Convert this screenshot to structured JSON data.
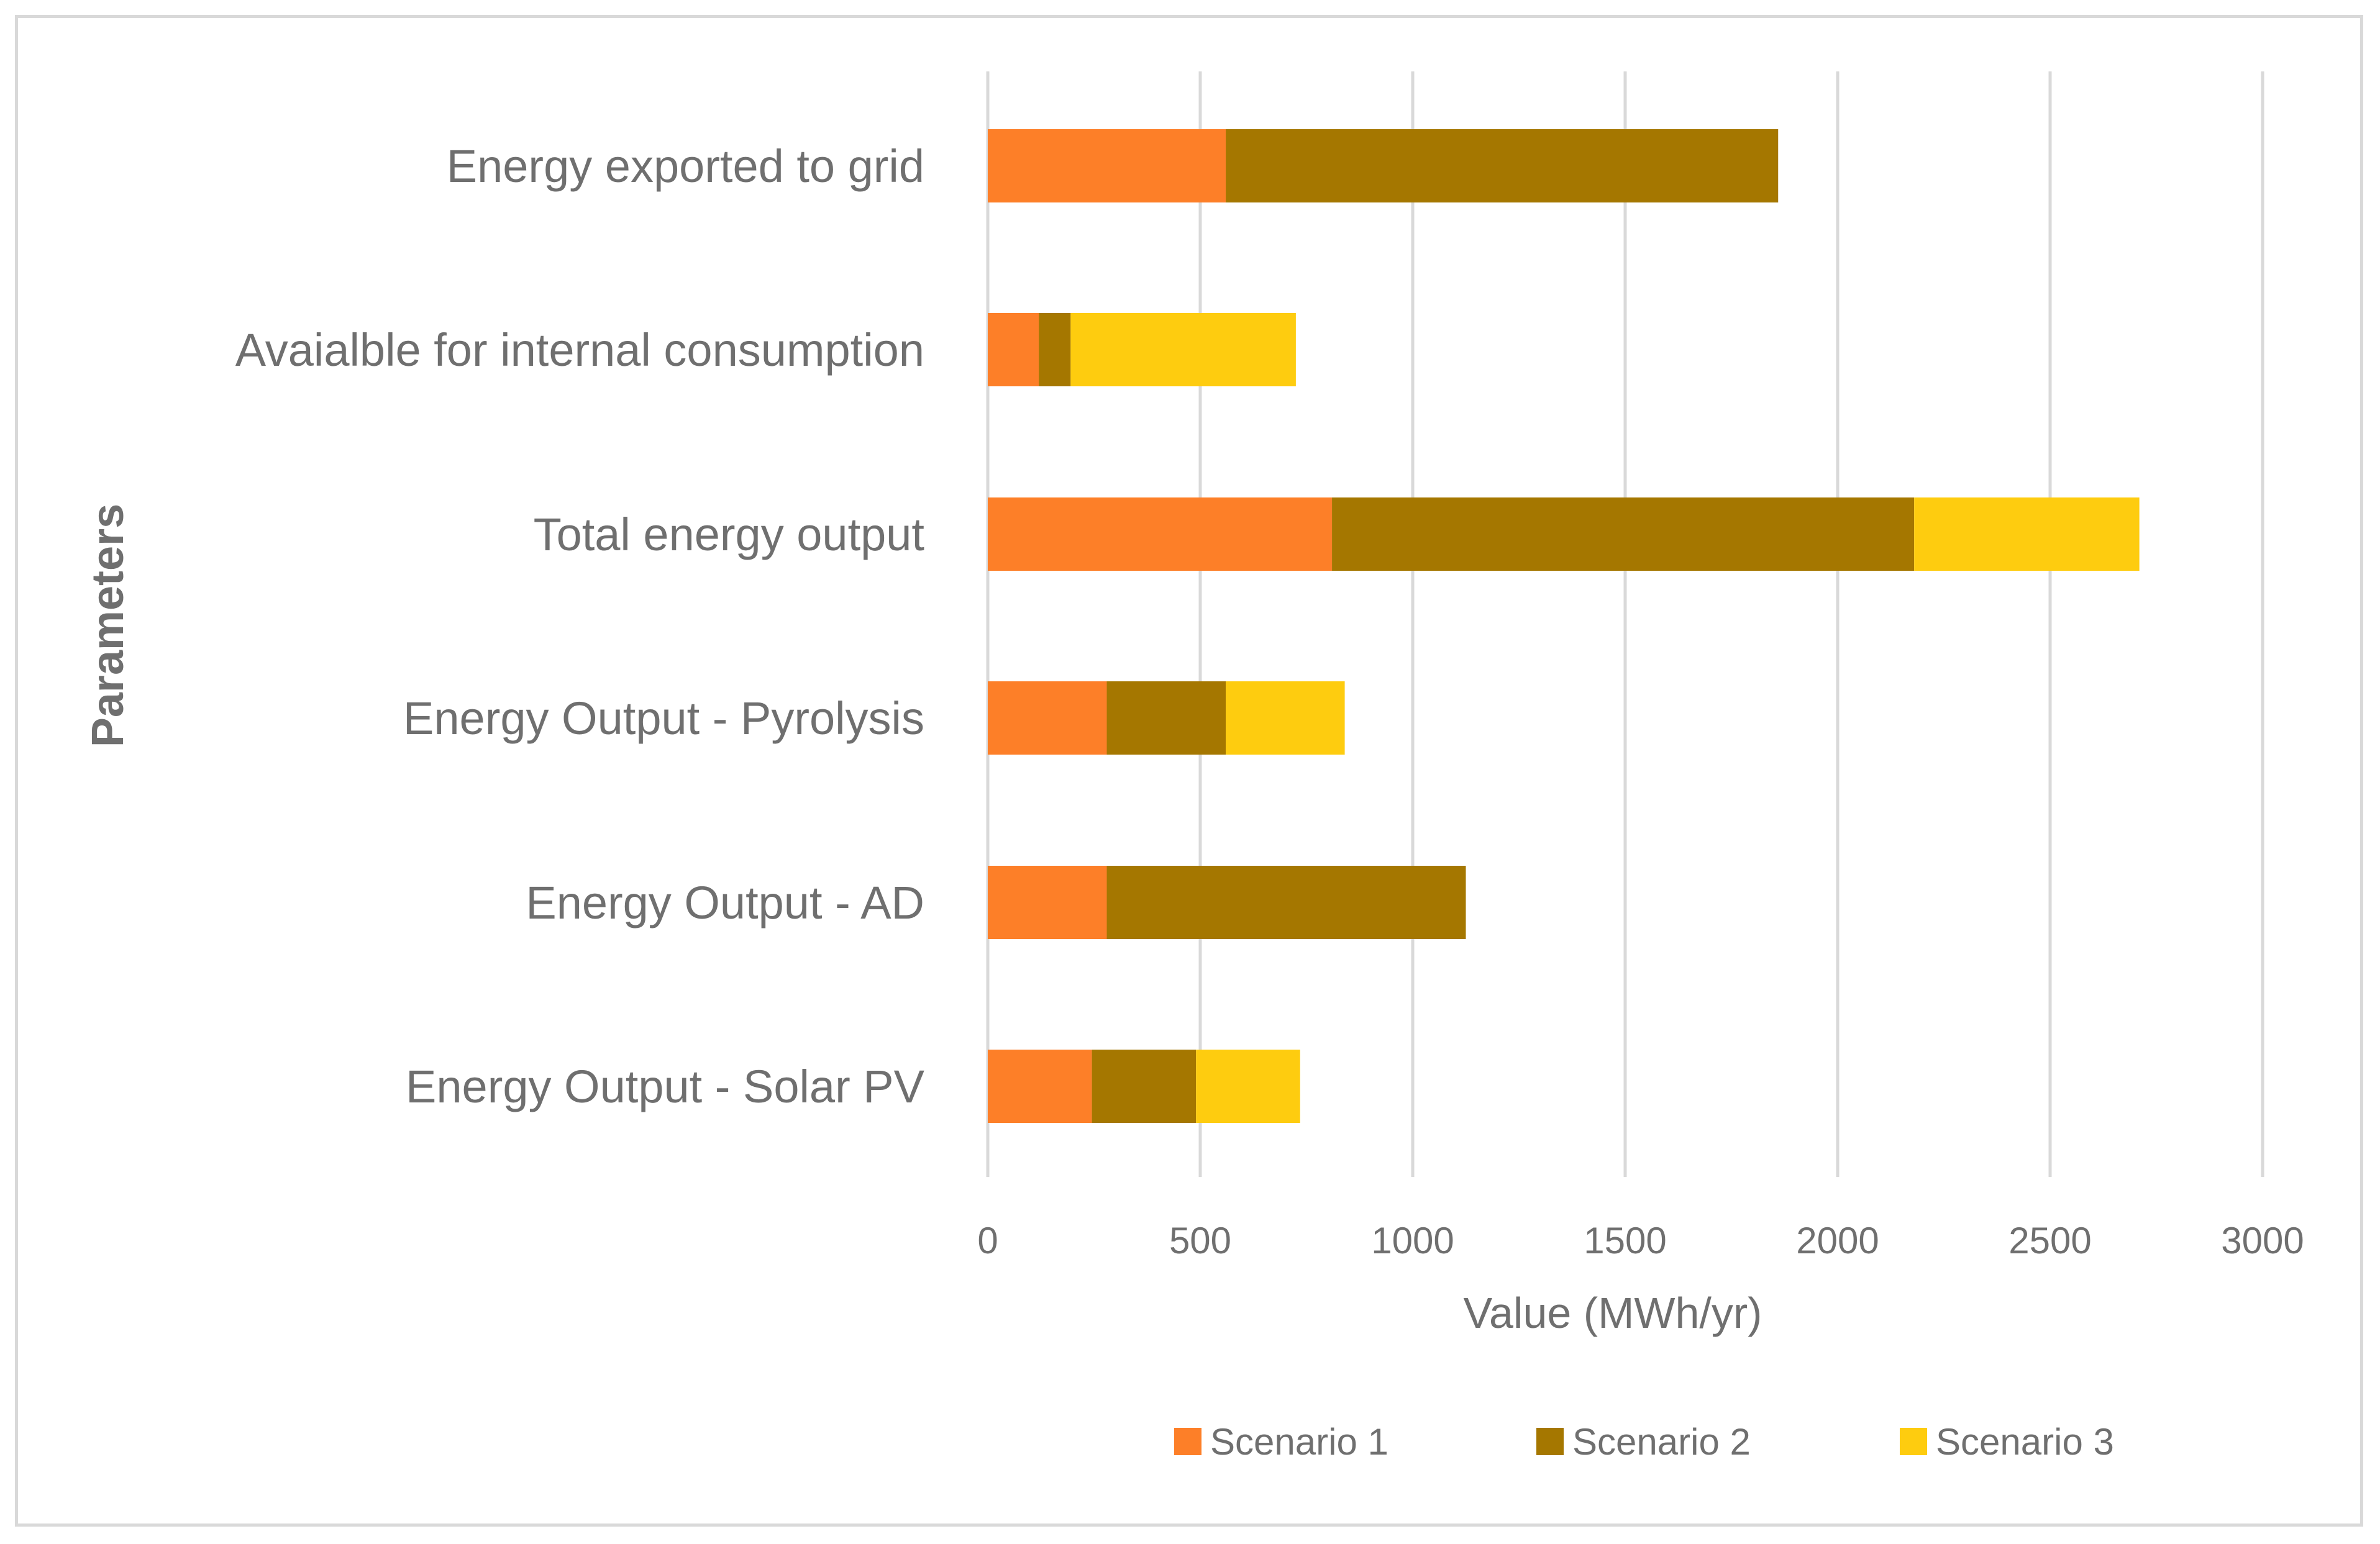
{
  "chart_data": {
    "type": "bar",
    "orientation": "horizontal",
    "stacked": true,
    "categories": [
      "Energy exported to grid",
      "Avaialble for internal consumption",
      "Total energy output",
      "Energy Output - Pyrolysis",
      "Energy Output - AD",
      "Energy Output - Solar PV"
    ],
    "series": [
      {
        "name": "Scenario 1",
        "color": "#fd7f28",
        "values": [
          560,
          120,
          810,
          280,
          280,
          245
        ]
      },
      {
        "name": "Scenario 2",
        "color": "#a57700",
        "values": [
          1300,
          75,
          1370,
          280,
          845,
          245
        ]
      },
      {
        "name": "Scenario 3",
        "color": "#fecc0f",
        "values": [
          0,
          530,
          530,
          280,
          0,
          245
        ]
      }
    ],
    "xlabel": "Value (MWh/yr)",
    "ylabel": "Parameters",
    "xlim": [
      0,
      3000
    ],
    "xticks": [
      "0",
      "500",
      "1000",
      "1500",
      "2000",
      "2500",
      "3000"
    ],
    "grid": true,
    "legend_position": "bottom"
  }
}
